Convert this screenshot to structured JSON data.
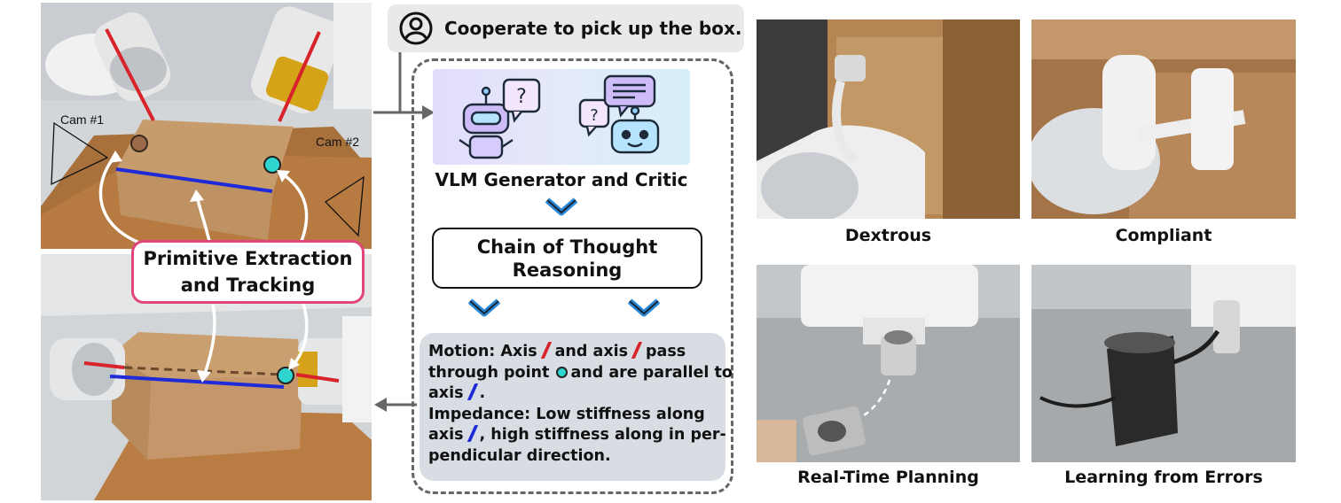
{
  "task": {
    "text": "Cooperate to pick up the box."
  },
  "left": {
    "cam1_label": "Cam #1",
    "cam2_label": "Cam #2",
    "primitive_line1": "Primitive Extraction",
    "primitive_line2": "and Tracking"
  },
  "center": {
    "vlm_label": "VLM Generator and Critic",
    "cot_line1": "Chain of Thought",
    "cot_line2": "Reasoning",
    "motion": {
      "p1": "Motion: Axis",
      "p2": "and axis",
      "p3": "pass",
      "p4": "through point",
      "p5": "and are parallel to",
      "p6": "axis",
      "p7": "."
    },
    "impedance": {
      "p1": "Impedance: Low stiffness along",
      "p2": "axis",
      "p3": ", high stiffness along in per-",
      "p4": "pendicular direction."
    }
  },
  "right": {
    "dextrous": "Dextrous",
    "compliant": "Compliant",
    "realtime": "Real-Time Planning",
    "errors": "Learning from Errors"
  },
  "colors": {
    "pink_border": "#e0457b",
    "red_axis": "#d8232a",
    "blue_axis": "#1f2bd8",
    "cyan_point": "#2fd6cf",
    "brown_point": "#9a6a4a",
    "result_bg": "#d7dde2",
    "task_bg": "#e9e9e9"
  }
}
